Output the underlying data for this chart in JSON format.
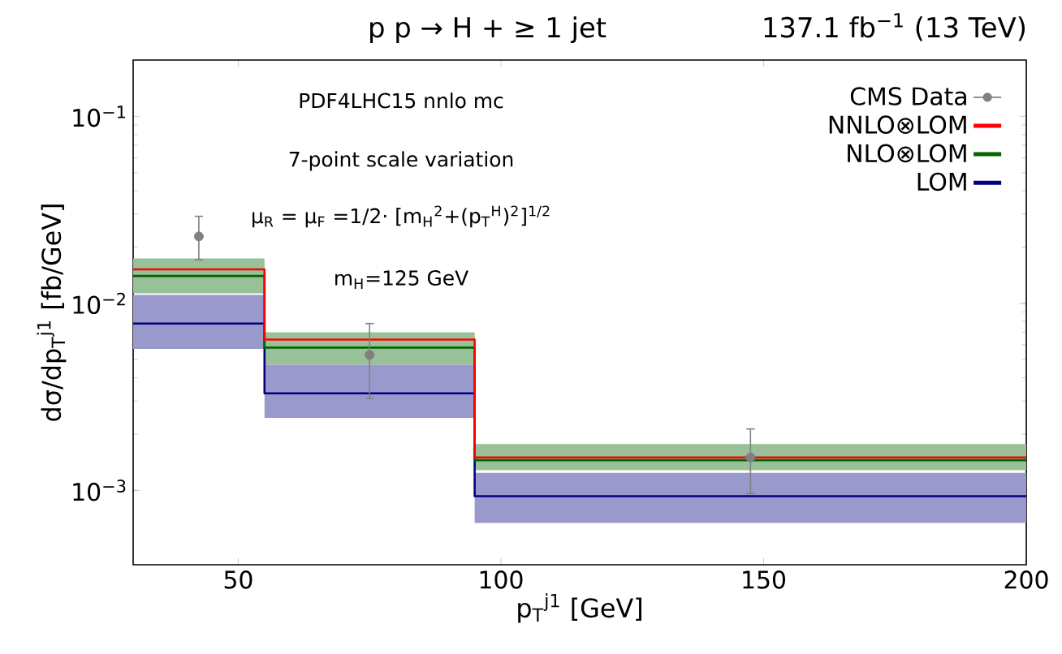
{
  "chart_data": {
    "type": "step",
    "title": "p p → H + ≥ 1 jet",
    "subtitle": "137.1 fb$^{−1}$ (13 TeV)",
    "xlabel": "p$_{T}$$^{j1}$ [GeV]",
    "ylabel": "dσ/dp$_{T}$$^{j1}$ [fb/GeV]",
    "annotations": [
      "PDF4LHC15 nnlo mc",
      "7-point scale variation",
      "μ$_{R}$ = μ$_{F}$ =1/2· [m$_{H}$$^{2}$+(p$_{T}$$^{H}$)$^{2}$]$^{1/2}$",
      "m$_{H}$=125 GeV"
    ],
    "log": "y",
    "xlim": [
      30,
      200
    ],
    "ylim": [
      0.0004,
      0.2
    ],
    "xticks": [
      50,
      100,
      150,
      200
    ],
    "yticks": [
      {
        "value": 0.001,
        "label": "10$^{−3}$"
      },
      {
        "value": 0.01,
        "label": "10$^{−2}$"
      },
      {
        "value": 0.1,
        "label": "10$^{−1}$"
      }
    ],
    "legend": "top right",
    "grid": false,
    "series": [
      {
        "name": "CMS Data",
        "type": "scatter",
        "marker": "circle",
        "color": "#808080",
        "x": [
          42.5,
          75,
          147.5
        ],
        "values": [
          0.0228,
          0.0053,
          0.0015
        ],
        "errors": [
          [
            0.0171,
            0.0292
          ],
          [
            0.0031,
            0.0078
          ],
          [
            0.00096,
            0.00213
          ]
        ]
      },
      {
        "name": "NNLO⊗LOM",
        "color": "#ff0000",
        "x": [
          30,
          55,
          95,
          200
        ],
        "values": [
          0.0152,
          0.0064,
          0.0015,
          0.0015
        ],
        "lower": [
          0.014,
          0.0059,
          0.00145,
          0.00145
        ],
        "upper": [
          0.0162,
          0.00667,
          0.00155,
          0.00155
        ]
      },
      {
        "name": "NLO⊗LOM",
        "color": "#006400",
        "x": [
          30,
          55,
          95,
          200
        ],
        "values": [
          0.014,
          0.0058,
          0.00145,
          0.00145
        ],
        "lower": [
          0.0113,
          0.0047,
          0.00128,
          0.00128
        ],
        "upper": [
          0.0174,
          0.007,
          0.00177,
          0.00177
        ]
      },
      {
        "name": "LOM",
        "color": "#000080",
        "x": [
          30,
          55,
          95,
          200
        ],
        "values": [
          0.0078,
          0.0033,
          0.00093,
          0.00093
        ],
        "lower": [
          0.0057,
          0.00244,
          0.00067,
          0.00067
        ],
        "upper": [
          0.0111,
          0.0047,
          0.00124,
          0.00124
        ]
      }
    ]
  }
}
